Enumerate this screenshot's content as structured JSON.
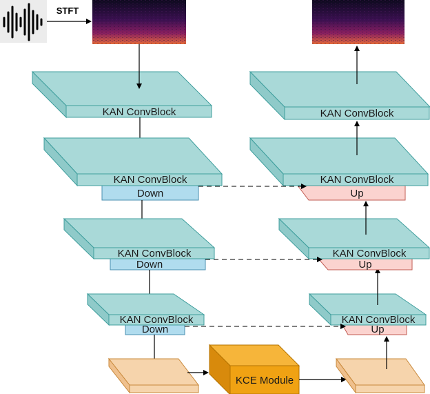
{
  "input": {
    "stft_label": "STFT"
  },
  "encoder": {
    "blocks": [
      {
        "label": "KAN ConvBlock"
      },
      {
        "label": "KAN ConvBlock",
        "down_label": "Down"
      },
      {
        "label": "KAN ConvBlock",
        "down_label": "Down"
      },
      {
        "label": "KAN ConvBlock",
        "down_label": "Down"
      }
    ]
  },
  "bottleneck": {
    "kce_label": "KCE Module"
  },
  "decoder": {
    "blocks": [
      {
        "label": "KAN ConvBlock"
      },
      {
        "label": "KAN ConvBlock",
        "up_label": "Up"
      },
      {
        "label": "KAN ConvBlock",
        "up_label": "Up"
      },
      {
        "label": "KAN ConvBlock",
        "up_label": "Up"
      }
    ]
  },
  "colors": {
    "block_top": "#a9d9d8",
    "block_side": "#8fcac9",
    "block_border": "#3f9e9d",
    "down_fill": "#b0dcee",
    "up_fill": "#fbd3cf",
    "up_border": "#c25b52",
    "bottleneck_fill": "#f6d4ac",
    "bottleneck_border": "#c8883a",
    "kce_fill": "#f0a213",
    "kce_border": "#b47300"
  }
}
